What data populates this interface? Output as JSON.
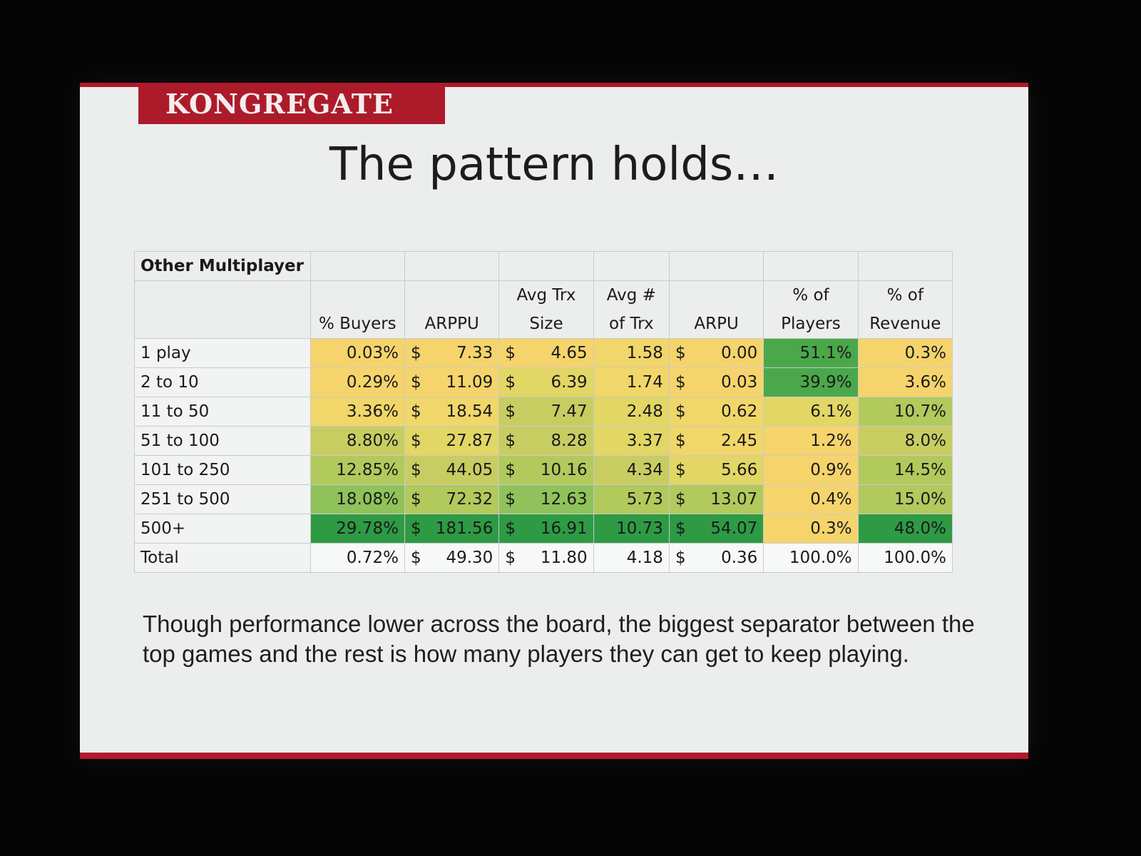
{
  "logo": "KONGREGATE",
  "title": "The pattern holds…",
  "table": {
    "group_label": "Other Multiplayer",
    "headers": [
      [
        "",
        ""
      ],
      [
        "",
        "% Buyers"
      ],
      [
        "",
        "ARPPU"
      ],
      [
        "Avg Trx",
        "Size"
      ],
      [
        "Avg #",
        "of Trx"
      ],
      [
        "",
        "ARPU"
      ],
      [
        "% of",
        "Players"
      ],
      [
        "% of",
        "Revenue"
      ]
    ],
    "rows": [
      {
        "label": "1 play",
        "buyers": "0.03%",
        "arppu": "7.33",
        "avg_trx": "4.65",
        "num_trx": "1.58",
        "arpu": "0.00",
        "players": "51.1%",
        "revenue": "0.3%"
      },
      {
        "label": "2 to 10",
        "buyers": "0.29%",
        "arppu": "11.09",
        "avg_trx": "6.39",
        "num_trx": "1.74",
        "arpu": "0.03",
        "players": "39.9%",
        "revenue": "3.6%"
      },
      {
        "label": "11 to 50",
        "buyers": "3.36%",
        "arppu": "18.54",
        "avg_trx": "7.47",
        "num_trx": "2.48",
        "arpu": "0.62",
        "players": "6.1%",
        "revenue": "10.7%"
      },
      {
        "label": "51 to 100",
        "buyers": "8.80%",
        "arppu": "27.87",
        "avg_trx": "8.28",
        "num_trx": "3.37",
        "arpu": "2.45",
        "players": "1.2%",
        "revenue": "8.0%"
      },
      {
        "label": "101 to 250",
        "buyers": "12.85%",
        "arppu": "44.05",
        "avg_trx": "10.16",
        "num_trx": "4.34",
        "arpu": "5.66",
        "players": "0.9%",
        "revenue": "14.5%"
      },
      {
        "label": "251 to 500",
        "buyers": "18.08%",
        "arppu": "72.32",
        "avg_trx": "12.63",
        "num_trx": "5.73",
        "arpu": "13.07",
        "players": "0.4%",
        "revenue": "15.0%"
      },
      {
        "label": "500+",
        "buyers": "29.78%",
        "arppu": "181.56",
        "avg_trx": "16.91",
        "num_trx": "10.73",
        "arpu": "54.07",
        "players": "0.3%",
        "revenue": "48.0%"
      },
      {
        "label": "Total",
        "buyers": "0.72%",
        "arppu": "49.30",
        "avg_trx": "11.80",
        "num_trx": "4.18",
        "arpu": "0.36",
        "players": "100.0%",
        "revenue": "100.0%"
      }
    ],
    "currency": "$"
  },
  "caption": "Though performance lower across the board, the biggest separator between the top games and the rest is how many players they can get to keep playing."
}
